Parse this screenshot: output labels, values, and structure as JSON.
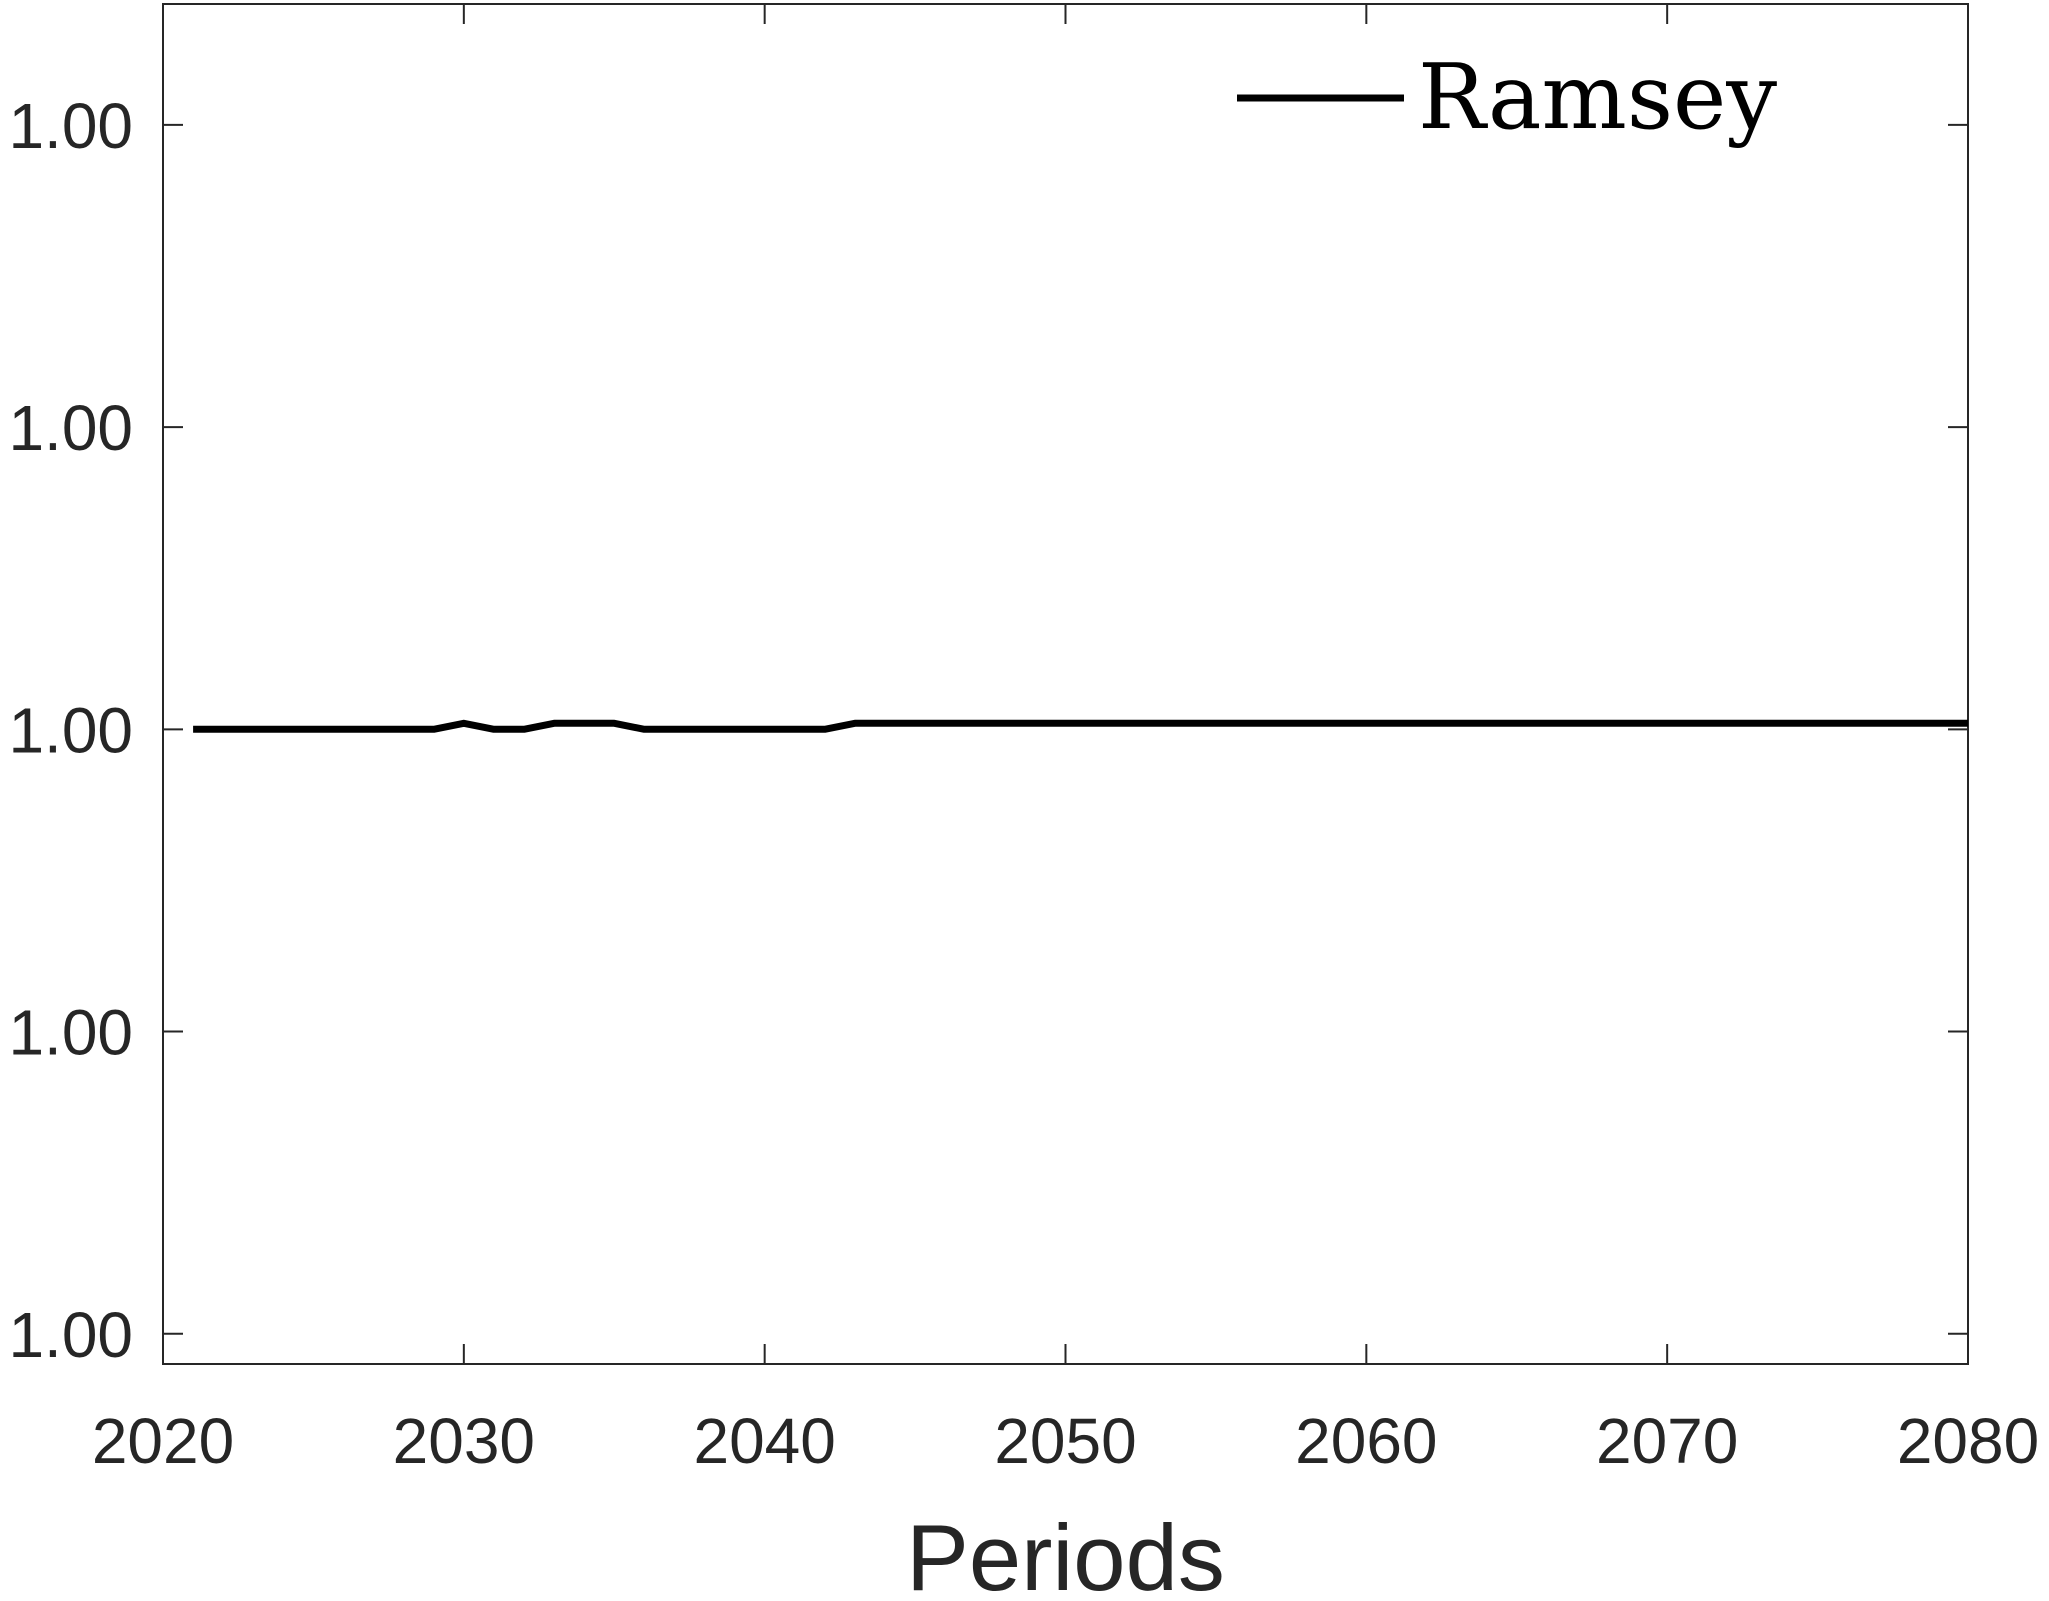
{
  "chart_data": {
    "type": "line",
    "title": "",
    "xlabel": "Periods",
    "ylabel": "",
    "xlim": [
      2020,
      2080
    ],
    "ylim": [
      0.9999979,
      1.0000024
    ],
    "x_ticks": [
      {
        "value": 2020,
        "label": "2020"
      },
      {
        "value": 2030,
        "label": "2030"
      },
      {
        "value": 2040,
        "label": "2040"
      },
      {
        "value": 2050,
        "label": "2050"
      },
      {
        "value": 2060,
        "label": "2060"
      },
      {
        "value": 2070,
        "label": "2070"
      },
      {
        "value": 2080,
        "label": "2080"
      }
    ],
    "y_ticks": [
      {
        "value": 0.999998,
        "label": "1.00"
      },
      {
        "value": 0.999999,
        "label": "1.00"
      },
      {
        "value": 1.0,
        "label": "1.00"
      },
      {
        "value": 1.000001,
        "label": "1.00"
      },
      {
        "value": 1.000002,
        "label": "1.00"
      }
    ],
    "grid": false,
    "legend_position": "top-right",
    "series": [
      {
        "name": "Ramsey",
        "color": "#000000",
        "x": [
          2021,
          2025,
          2029,
          2030,
          2031,
          2032,
          2033,
          2035,
          2036,
          2040,
          2042,
          2043,
          2050,
          2060,
          2070,
          2080
        ],
        "y": [
          1.0,
          1.0,
          1.0,
          1.00000002,
          1.0,
          1.0,
          1.00000002,
          1.00000002,
          1.0,
          1.0,
          1.0,
          1.00000002,
          1.00000002,
          1.00000002,
          1.00000002,
          1.00000002
        ]
      }
    ]
  }
}
